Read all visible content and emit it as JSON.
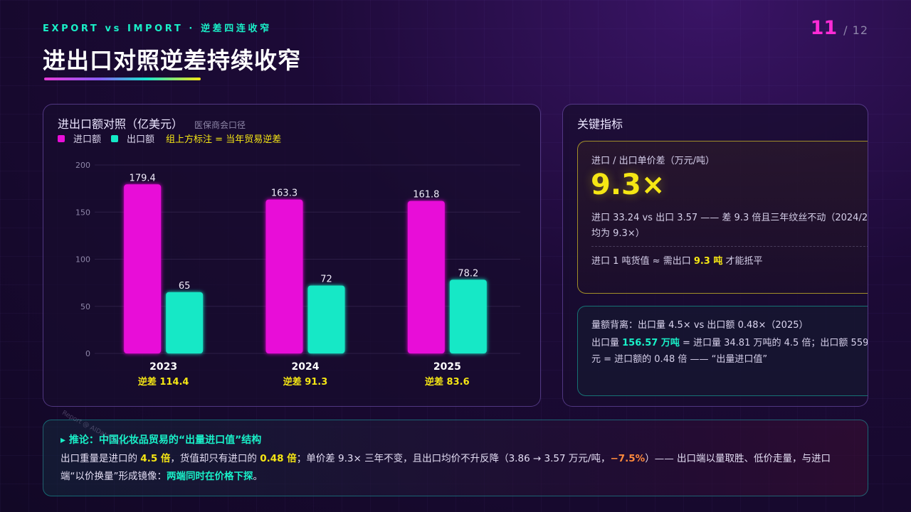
{
  "header": {
    "kicker": "EXPORT vs IMPORT · 逆差四连收窄",
    "title": "进出口对照逆差持续收窄",
    "page_current": "11",
    "page_total": "/ 12"
  },
  "chart_panel": {
    "title": "进出口额对照（亿美元）",
    "subtitle": "医保商会口径",
    "legend_import": "进口额",
    "legend_export": "出口额",
    "legend_note": "组上方标注 = 当年贸易逆差"
  },
  "chart_data": {
    "type": "bar",
    "categories": [
      "2023",
      "2024",
      "2025"
    ],
    "series": [
      {
        "name": "进口额",
        "values": [
          179.4,
          163.3,
          161.8
        ]
      },
      {
        "name": "出口额",
        "values": [
          65,
          72,
          78.2
        ]
      }
    ],
    "value_labels": [
      [
        "179.4",
        "163.3",
        "161.8"
      ],
      [
        "65",
        "72",
        "78.2"
      ]
    ],
    "deficit_labels": [
      "逆差 114.4",
      "逆差 91.3",
      "逆差 83.6"
    ],
    "yticks": [
      "0",
      "50",
      "100",
      "150",
      "200"
    ],
    "ylim": [
      0,
      200
    ],
    "grid": true,
    "legend_position": "top-left",
    "colors": {
      "import": "#e80ed8",
      "export": "#14e8c6",
      "deficit": "#f5e614"
    }
  },
  "metrics": {
    "title": "关键指标",
    "unit_card": {
      "label": "进口 / 出口单价差（万元/吨）",
      "value": "9.3×",
      "desc_line1": "进口 33.24 vs 出口 3.57 —— 差 9.3 倍且三年纹丝不动（2024/2",
      "desc_line2": "均为 9.3×）",
      "foot_pre": "进口 1 吨货值 ≈ 需出口 ",
      "foot_hl": "9.3 吨",
      "foot_post": " 才能抵平"
    },
    "volume_card": {
      "title": "量额背离：出口量 4.5× vs 出口额 0.48×（2025）",
      "line1_pre": "出口量 ",
      "line1_hl": "156.57 万吨",
      "line1_post": " = 进口量 34.81 万吨的 4.5 倍；出口额 559.",
      "line2": "元 = 进口额的 0.48 倍 —— “出量进口值”"
    }
  },
  "conclusion": {
    "title": "▸ 推论：中国化妆品贸易的“出量进口值”结构",
    "p1": "出口重量是进口的 ",
    "h1": "4.5 倍",
    "p2": "，货值却只有进口的 ",
    "h2": "0.48 倍",
    "p3": "；单价差 9.3× 三年不变，且出口均价不升反降（3.86 → 3.57 万元/吨，",
    "h3": "−7.5%",
    "p4": "）—— 出口端以量取胜、低价走量，与进口",
    "p5": "端“以价换量”形成镜像：",
    "h4": "两端同时在价格下探",
    "p6": "。"
  },
  "watermark": "Report @ AIDataCom"
}
